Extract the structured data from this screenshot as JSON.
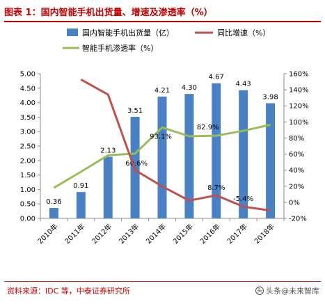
{
  "title": "图表 1：国内智能手机出货量、增速及渗透率（%）",
  "source": "资料来源：IDC 等，中泰证券研究所",
  "watermark": {
    "text": "头条@未来智库",
    "icon": "headline-icon"
  },
  "colors": {
    "bars": "#4a81c4",
    "growth": "#c0504d",
    "penetration": "#9bbb59",
    "title": "#c00000"
  },
  "chart_data": {
    "type": "bar",
    "categories": [
      "2010年",
      "2011年",
      "2012年",
      "2013年",
      "2014年",
      "2015年",
      "2016年",
      "2017年",
      "2018年"
    ],
    "series": [
      {
        "name": "国内智能手机出货量（亿）",
        "type": "bar",
        "axis": "left",
        "values": [
          0.36,
          0.91,
          2.13,
          3.51,
          4.21,
          4.3,
          4.67,
          4.43,
          3.98
        ],
        "labels": [
          "0.36",
          "0.91",
          "2.13",
          "3.51",
          "4.21",
          "4.30",
          "4.67",
          "4.43",
          "3.98"
        ]
      },
      {
        "name": "同比增速（%）",
        "type": "line",
        "axis": "right",
        "values": [
          null,
          152.8,
          134.1,
          40,
          19.9,
          2.1,
          8.7,
          -5.4,
          -10.2
        ],
        "labels": [
          null,
          null,
          null,
          null,
          null,
          null,
          "8.7%",
          "-5.4%",
          null
        ]
      },
      {
        "name": "智能手机渗透率（%）",
        "type": "line",
        "axis": "right",
        "values": [
          18,
          38,
          58.5,
          60.6,
          93.1,
          82.2,
          82.9,
          89,
          96.5
        ],
        "labels": [
          null,
          null,
          null,
          "60.6%",
          "93.1%",
          null,
          "82.9%",
          null,
          null
        ]
      }
    ],
    "yleft": {
      "min": 0,
      "max": 5,
      "step": 0.5,
      "ticks": [
        "0.00",
        "0.50",
        "1.00",
        "1.50",
        "2.00",
        "2.50",
        "3.00",
        "3.50",
        "4.00",
        "4.50",
        "5.00"
      ]
    },
    "yright": {
      "min": -20,
      "max": 160,
      "step": 20,
      "ticks": [
        "-20%",
        "0%",
        "20%",
        "40%",
        "60%",
        "80%",
        "100%",
        "120%",
        "140%",
        "160%"
      ]
    },
    "legend_position": "top",
    "grid": false
  }
}
